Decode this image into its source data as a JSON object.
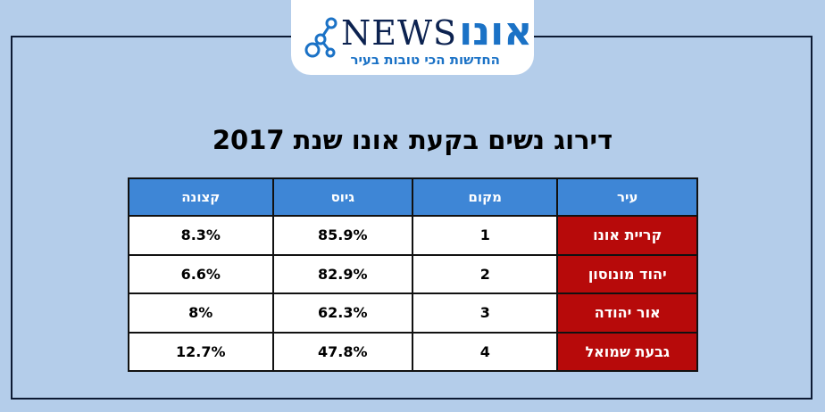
{
  "logo": {
    "brand_latin": "NEWS",
    "brand_hebrew": "אונו",
    "tagline": "החדשות הכי טובות בעיר",
    "icon": "network-nodes-icon"
  },
  "title": "דירוג נשים בקעת אונו שנת 2017",
  "table": {
    "headers": [
      "עיר",
      "מקום",
      "גיוס",
      "קצונה"
    ],
    "rows": [
      {
        "city": "קריית אונו",
        "rank": "1",
        "recruitment": "85.9%",
        "officers": "8.3%"
      },
      {
        "city": "יהוד מונוסון",
        "rank": "2",
        "recruitment": "82.9%",
        "officers": "6.6%"
      },
      {
        "city": "אור יהודה",
        "rank": "3",
        "recruitment": "62.3%",
        "officers": "8%"
      },
      {
        "city": "גבעת שמואל",
        "rank": "4",
        "recruitment": "47.8%",
        "officers": "12.7%"
      }
    ]
  },
  "colors": {
    "background": "#b4cdea",
    "header": "#3e86d6",
    "city_cell": "#b70a0a",
    "brand_blue": "#1b72c6",
    "brand_navy": "#0c2250"
  }
}
